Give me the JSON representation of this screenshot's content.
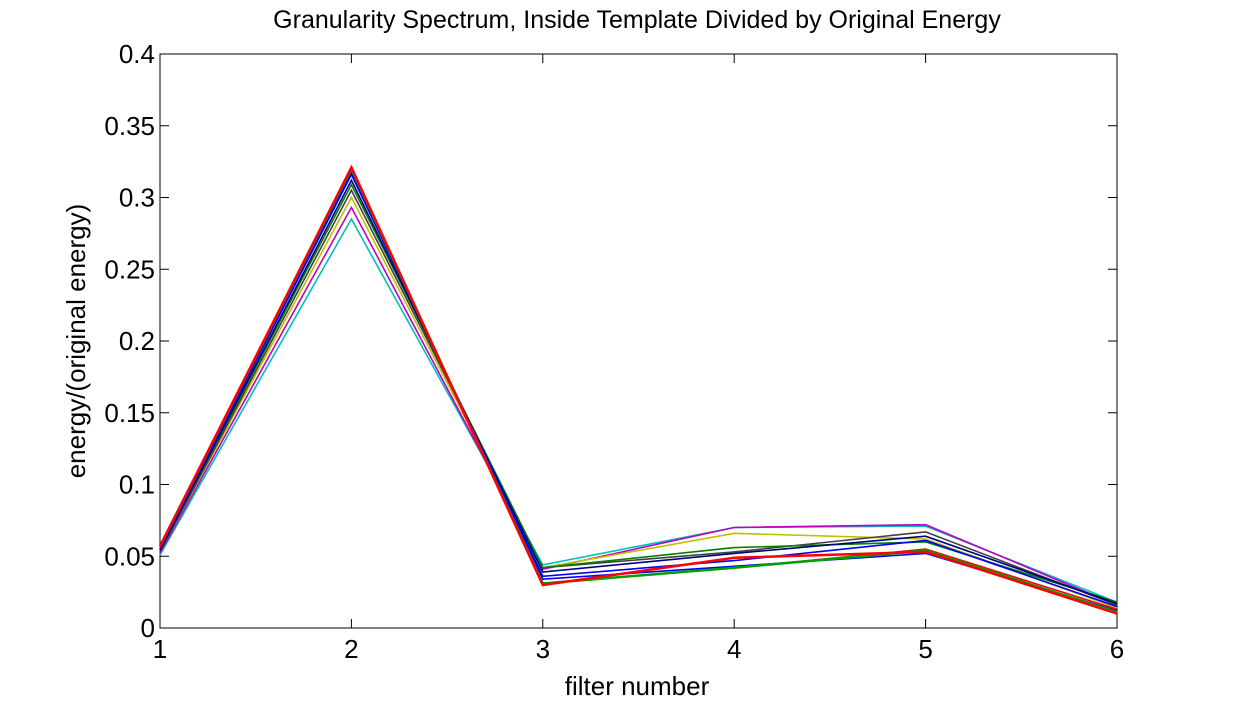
{
  "chart_data": {
    "type": "line",
    "title": "Granularity Spectrum, Inside Template Divided by Original Energy",
    "xlabel": "filter number",
    "ylabel": "energy/(original energy)",
    "xlim": [
      1,
      6
    ],
    "ylim": [
      0,
      0.4
    ],
    "x_ticks": [
      "1",
      "2",
      "3",
      "4",
      "5",
      "6"
    ],
    "y_ticks": [
      "0",
      "0.05",
      "0.1",
      "0.15",
      "0.2",
      "0.25",
      "0.3",
      "0.35",
      "0.4"
    ],
    "grid": false,
    "legend": "none",
    "x": [
      1,
      2,
      3,
      4,
      5,
      6
    ],
    "series": [
      {
        "color": "#00bfbf",
        "values": [
          0.051,
          0.285,
          0.044,
          0.07,
          0.071,
          0.018
        ]
      },
      {
        "color": "#bf00bf",
        "values": [
          0.052,
          0.293,
          0.041,
          0.07,
          0.072,
          0.016
        ]
      },
      {
        "color": "#bfbf00",
        "values": [
          0.053,
          0.3,
          0.042,
          0.066,
          0.062,
          0.014
        ]
      },
      {
        "color": "#404040",
        "values": [
          0.053,
          0.305,
          0.042,
          0.053,
          0.067,
          0.016
        ]
      },
      {
        "color": "#008000",
        "values": [
          0.054,
          0.309,
          0.042,
          0.056,
          0.06,
          0.018
        ]
      },
      {
        "color": "#000080",
        "values": [
          0.054,
          0.312,
          0.039,
          0.052,
          0.064,
          0.017
        ]
      },
      {
        "color": "#0000ff",
        "values": [
          0.055,
          0.316,
          0.036,
          0.047,
          0.061,
          0.015
        ]
      },
      {
        "color": "#0000ff",
        "values": [
          0.055,
          0.318,
          0.034,
          0.043,
          0.052,
          0.012
        ]
      },
      {
        "color": "#ff0000",
        "values": [
          0.056,
          0.32,
          0.031,
          0.042,
          0.055,
          0.013
        ]
      },
      {
        "color": "#00a000",
        "values": [
          0.057,
          0.32,
          0.031,
          0.042,
          0.054,
          0.011
        ]
      },
      {
        "color": "#ff0000",
        "values": [
          0.057,
          0.321,
          0.03,
          0.049,
          0.053,
          0.01
        ]
      }
    ]
  }
}
